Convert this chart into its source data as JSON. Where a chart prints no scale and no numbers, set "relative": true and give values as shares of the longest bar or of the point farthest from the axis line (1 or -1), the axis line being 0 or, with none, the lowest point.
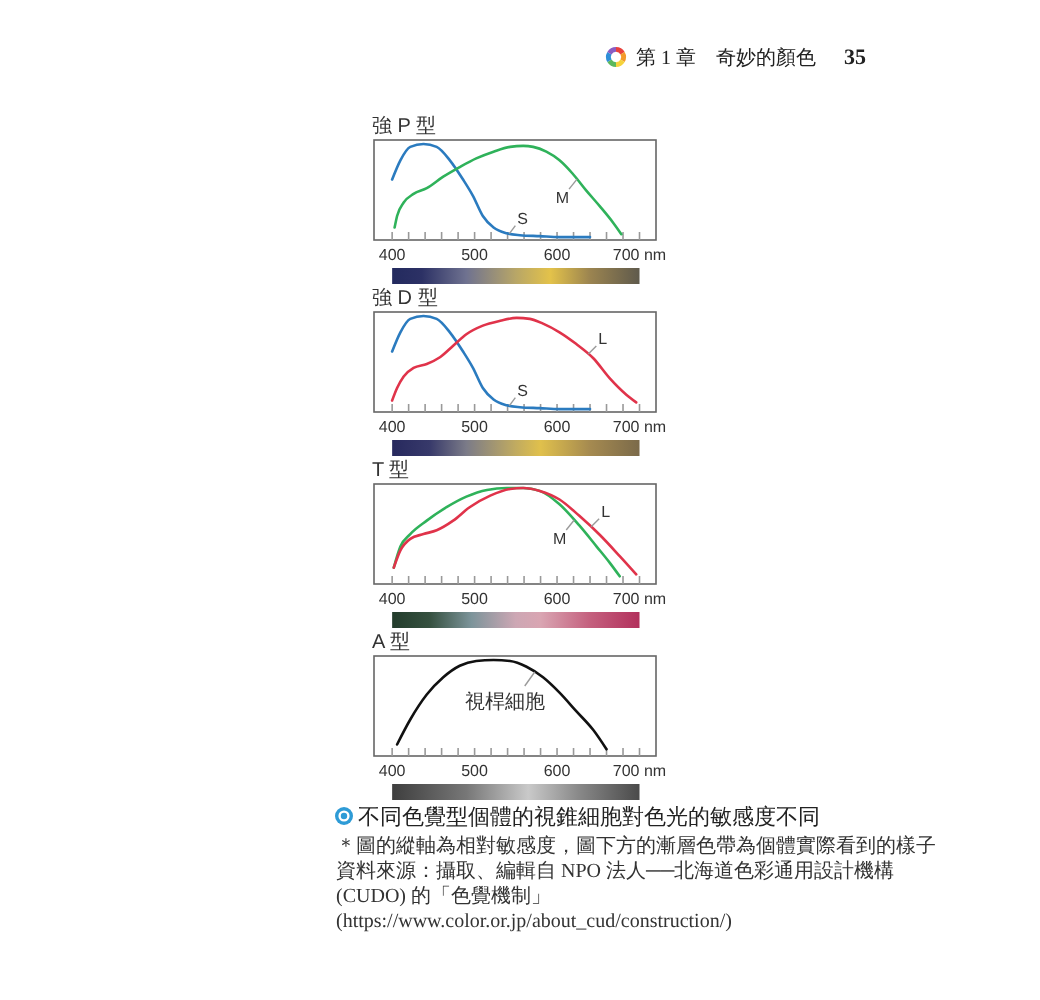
{
  "chart_data": [
    {
      "type": "other",
      "annotations": [
        "第 1 章　奇妙的顏色",
        "35"
      ]
    },
    {
      "type": "line",
      "title": "強 P 型",
      "relative": true,
      "xlim": [
        378,
        720
      ],
      "xticks": [
        400,
        {
          "value": 420,
          "label": null
        },
        {
          "value": 440,
          "label": null
        },
        {
          "value": 460,
          "label": null
        },
        {
          "value": 480,
          "label": null
        },
        500,
        {
          "value": 520,
          "label": null
        },
        {
          "value": 540,
          "label": null
        },
        {
          "value": 560,
          "label": null
        },
        {
          "value": 580,
          "label": null
        },
        600,
        {
          "value": 620,
          "label": null
        },
        {
          "value": 640,
          "label": null
        },
        {
          "value": 660,
          "label": null
        },
        {
          "value": 680,
          "label": null
        },
        {
          "value": 700,
          "label": "700 nm"
        }
      ],
      "series": [
        {
          "name": "S",
          "color": "#2b7bbf",
          "x": [
            400,
            410,
            422,
            438,
            454,
            470,
            486,
            498,
            510,
            523,
            539,
            555,
            579,
            603,
            640
          ],
          "values": [
            0.63,
            0.83,
            0.97,
            1,
            0.97,
            0.83,
            0.63,
            0.46,
            0.25,
            0.13,
            0.07,
            0.05,
            0.04,
            0.03,
            0.03
          ]
        },
        {
          "name": "M",
          "color": "#2fb25a",
          "x": [
            403,
            406,
            414,
            426,
            442,
            462,
            482,
            502,
            523,
            543,
            559,
            571,
            587,
            603,
            619,
            635,
            652,
            668,
            678
          ],
          "values": [
            0.13,
            0.25,
            0.39,
            0.48,
            0.54,
            0.66,
            0.76,
            0.85,
            0.92,
            0.97,
            0.98,
            0.97,
            0.92,
            0.83,
            0.69,
            0.52,
            0.35,
            0.18,
            0.06
          ]
        }
      ]
    },
    {
      "type": "line",
      "title": "強 D 型",
      "relative": true,
      "xlim": [
        378,
        720
      ],
      "xticks": [
        400,
        {
          "value": 420,
          "label": null
        },
        {
          "value": 440,
          "label": null
        },
        {
          "value": 460,
          "label": null
        },
        {
          "value": 480,
          "label": null
        },
        500,
        {
          "value": 520,
          "label": null
        },
        {
          "value": 540,
          "label": null
        },
        {
          "value": 560,
          "label": null
        },
        {
          "value": 580,
          "label": null
        },
        600,
        {
          "value": 620,
          "label": null
        },
        {
          "value": 640,
          "label": null
        },
        {
          "value": 660,
          "label": null
        },
        {
          "value": 680,
          "label": null
        },
        {
          "value": 700,
          "label": "700 nm"
        }
      ],
      "series": [
        {
          "name": "S",
          "color": "#2b7bbf",
          "x": [
            400,
            410,
            422,
            438,
            454,
            470,
            486,
            498,
            510,
            523,
            539,
            555,
            579,
            603,
            640
          ],
          "values": [
            0.63,
            0.83,
            0.97,
            1,
            0.97,
            0.83,
            0.63,
            0.46,
            0.25,
            0.13,
            0.07,
            0.05,
            0.04,
            0.03,
            0.03
          ]
        },
        {
          "name": "L",
          "color": "#e0334a",
          "x": [
            400,
            406,
            414,
            426,
            442,
            458,
            474,
            490,
            510,
            531,
            551,
            567,
            583,
            603,
            623,
            644,
            664,
            684,
            696
          ],
          "values": [
            0.12,
            0.25,
            0.37,
            0.46,
            0.5,
            0.57,
            0.69,
            0.81,
            0.9,
            0.95,
            0.98,
            0.97,
            0.92,
            0.83,
            0.71,
            0.56,
            0.35,
            0.18,
            0.1
          ]
        }
      ]
    },
    {
      "type": "line",
      "title": "T 型",
      "relative": true,
      "xlim": [
        378,
        720
      ],
      "xticks": [
        400,
        {
          "value": 420,
          "label": null
        },
        {
          "value": 440,
          "label": null
        },
        {
          "value": 460,
          "label": null
        },
        {
          "value": 480,
          "label": null
        },
        500,
        {
          "value": 520,
          "label": null
        },
        {
          "value": 540,
          "label": null
        },
        {
          "value": 560,
          "label": null
        },
        {
          "value": 580,
          "label": null
        },
        600,
        {
          "value": 620,
          "label": null
        },
        {
          "value": 640,
          "label": null
        },
        {
          "value": 660,
          "label": null
        },
        {
          "value": 680,
          "label": null
        },
        {
          "value": 700,
          "label": "700 nm"
        }
      ],
      "series": [
        {
          "name": "M",
          "color": "#2fb25a",
          "x": [
            402,
            410,
            422,
            442,
            466,
            490,
            515,
            539,
            559,
            579,
            603,
            627,
            648,
            664,
            676
          ],
          "values": [
            0.17,
            0.39,
            0.52,
            0.66,
            0.8,
            0.91,
            0.98,
            1,
            1,
            0.97,
            0.83,
            0.61,
            0.39,
            0.22,
            0.08
          ]
        },
        {
          "name": "L",
          "color": "#e0334a",
          "x": [
            402,
            410,
            422,
            438,
            454,
            474,
            494,
            519,
            543,
            559,
            579,
            603,
            627,
            652,
            676,
            696
          ],
          "values": [
            0.17,
            0.35,
            0.47,
            0.52,
            0.56,
            0.66,
            0.8,
            0.92,
            0.99,
            1,
            0.97,
            0.88,
            0.71,
            0.51,
            0.29,
            0.1
          ]
        }
      ]
    },
    {
      "type": "line",
      "title": "A 型",
      "relative": true,
      "xlim": [
        378,
        720
      ],
      "xticks": [
        400,
        {
          "value": 420,
          "label": null
        },
        {
          "value": 440,
          "label": null
        },
        {
          "value": 460,
          "label": null
        },
        {
          "value": 480,
          "label": null
        },
        500,
        {
          "value": 520,
          "label": null
        },
        {
          "value": 540,
          "label": null
        },
        {
          "value": 560,
          "label": null
        },
        {
          "value": 580,
          "label": null
        },
        600,
        {
          "value": 620,
          "label": null
        },
        {
          "value": 640,
          "label": null
        },
        {
          "value": 660,
          "label": null
        },
        {
          "value": 680,
          "label": null
        },
        {
          "value": 700,
          "label": "700 nm"
        }
      ],
      "series": [
        {
          "name": "視桿細胞",
          "color": "#111111",
          "x": [
            406,
            422,
            442,
            462,
            482,
            502,
            523,
            543,
            563,
            583,
            603,
            623,
            644,
            660
          ],
          "values": [
            0.12,
            0.38,
            0.64,
            0.82,
            0.94,
            0.99,
            1,
            0.99,
            0.93,
            0.82,
            0.66,
            0.47,
            0.27,
            0.07
          ]
        }
      ]
    },
    {
      "type": "other",
      "title": "不同色覺型個體的視錐細胞對色光的敏感度不同",
      "annotations": [
        "＊圖的縱軸為相對敏感度，圖下方的漸層色帶為個體實際看到的樣子",
        "資料來源：攝取、編輯自 NPO 法人──北海道色彩通用設計機構 (CUDO) 的「色覺機制」(https://www.color.or.jp/about_cud/construction/)"
      ]
    }
  ]
}
